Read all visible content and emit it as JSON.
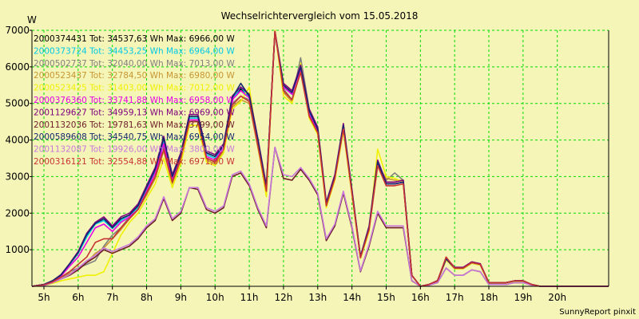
{
  "footer": "SunnyReport pinxit",
  "colors": {
    "background": "#f5f5b8",
    "plot_background": "#f5f5b8",
    "grid": "#00dd00",
    "axis": "#000000"
  },
  "chart_data": {
    "type": "line",
    "title": "Wechselrichtervergleich vom 15.05.2018",
    "ylabel": "W",
    "xlabel": "",
    "ylim": [
      0,
      7000
    ],
    "yticks": [
      1000,
      2000,
      3000,
      4000,
      5000,
      6000,
      7000
    ],
    "xlim": [
      4.65,
      21.5
    ],
    "xticks": [
      5,
      6,
      7,
      8,
      9,
      10,
      11,
      12,
      13,
      14,
      15,
      16,
      17,
      18,
      19,
      20
    ],
    "xtick_labels": [
      "5h",
      "6h",
      "7h",
      "8h",
      "9h",
      "10h",
      "11h",
      "12h",
      "13h",
      "14h",
      "15h",
      "16h",
      "17h",
      "18h",
      "19h",
      "20h"
    ],
    "grid": true,
    "legend_position": "top-left inside",
    "x": [
      4.65,
      5.0,
      5.25,
      5.5,
      5.75,
      6.0,
      6.25,
      6.5,
      6.75,
      7.0,
      7.25,
      7.5,
      7.75,
      8.0,
      8.25,
      8.5,
      8.75,
      9.0,
      9.25,
      9.5,
      9.75,
      10.0,
      10.25,
      10.5,
      10.75,
      11.0,
      11.25,
      11.5,
      11.75,
      12.0,
      12.25,
      12.5,
      12.75,
      13.0,
      13.25,
      13.5,
      13.75,
      14.0,
      14.25,
      14.5,
      14.75,
      15.0,
      15.25,
      15.5,
      15.75,
      16.0,
      16.25,
      16.5,
      16.75,
      17.0,
      17.25,
      17.5,
      17.75,
      18.0,
      18.25,
      18.5,
      18.75,
      19.0,
      19.25,
      19.5,
      19.75,
      20.0,
      20.25,
      20.5,
      21.5
    ],
    "series": [
      {
        "name": "2000374431 Tot: 34537,63 Wh Max: 6966,00 W",
        "color": "#000000",
        "values": [
          0,
          50,
          150,
          300,
          600,
          900,
          1400,
          1700,
          1850,
          1600,
          1850,
          1950,
          2200,
          2700,
          3200,
          4050,
          3000,
          3600,
          4650,
          4650,
          3650,
          3550,
          3850,
          5150,
          5400,
          5200,
          4000,
          2700,
          6950,
          5500,
          5300,
          6000,
          4800,
          4300,
          2250,
          3000,
          4400,
          2600,
          800,
          1600,
          3400,
          2800,
          2800,
          2850,
          300,
          0,
          50,
          150,
          750,
          500,
          500,
          650,
          600,
          100,
          100,
          100,
          150,
          150,
          50,
          0,
          0,
          0,
          0,
          0,
          0
        ]
      },
      {
        "name": "2000373724 Tot: 34453,25 Wh Max: 6964,00 W",
        "color": "#00c8e6",
        "values": [
          0,
          50,
          150,
          300,
          600,
          900,
          1350,
          1700,
          1800,
          1580,
          1800,
          1950,
          2150,
          2650,
          3150,
          4000,
          3000,
          3550,
          4600,
          4600,
          3600,
          3500,
          3800,
          5100,
          5450,
          5150,
          3950,
          2700,
          6950,
          5450,
          5250,
          5950,
          4750,
          4250,
          2250,
          3000,
          4350,
          2600,
          800,
          1600,
          3400,
          2800,
          2800,
          2850,
          300,
          0,
          50,
          150,
          750,
          500,
          500,
          650,
          600,
          100,
          100,
          100,
          150,
          150,
          50,
          0,
          0,
          0,
          0,
          0,
          0
        ]
      },
      {
        "name": "2000502737 Tot: 32040,00 Wh Max: 7013,00 W",
        "color": "#808080",
        "values": [
          0,
          30,
          100,
          200,
          400,
          500,
          600,
          700,
          1100,
          1400,
          1600,
          1900,
          2100,
          2500,
          3000,
          3800,
          2900,
          3500,
          4500,
          4550,
          3500,
          3400,
          3750,
          5000,
          5200,
          5100,
          3900,
          2600,
          7000,
          5400,
          5100,
          6250,
          4850,
          4300,
          2200,
          2950,
          4400,
          2550,
          780,
          1550,
          3300,
          2900,
          3100,
          2900,
          300,
          0,
          50,
          140,
          720,
          480,
          480,
          630,
          580,
          90,
          90,
          90,
          140,
          140,
          40,
          0,
          0,
          0,
          0,
          0,
          0
        ]
      },
      {
        "name": "2000523437 Tot: 32784,50 Wh Max: 6980,00 W",
        "color": "#c89632",
        "values": [
          0,
          30,
          100,
          200,
          350,
          450,
          650,
          900,
          1050,
          1300,
          1550,
          1850,
          2100,
          2500,
          2950,
          3700,
          2800,
          3450,
          4500,
          4500,
          3450,
          3350,
          3700,
          4900,
          5100,
          5000,
          3800,
          2550,
          6980,
          5300,
          5050,
          5900,
          4650,
          4200,
          2200,
          2950,
          4300,
          2550,
          780,
          1550,
          3300,
          2950,
          2900,
          2900,
          300,
          0,
          50,
          140,
          720,
          480,
          480,
          630,
          580,
          90,
          90,
          90,
          140,
          140,
          40,
          0,
          0,
          0,
          0,
          0,
          0
        ]
      },
      {
        "name": "2000523425 Tot: 31403,00 Wh Max: 7012,00 W",
        "color": "#f0f000",
        "values": [
          0,
          20,
          80,
          150,
          200,
          250,
          300,
          300,
          400,
          900,
          1400,
          1750,
          2000,
          2400,
          2800,
          3500,
          2700,
          3350,
          4400,
          4400,
          3400,
          3300,
          3650,
          4850,
          5050,
          5450,
          3850,
          2450,
          7000,
          5200,
          5000,
          6100,
          4600,
          4150,
          2150,
          2900,
          4250,
          2500,
          760,
          1500,
          3750,
          3000,
          2950,
          2850,
          300,
          0,
          50,
          140,
          720,
          480,
          480,
          630,
          580,
          90,
          90,
          90,
          140,
          140,
          40,
          0,
          0,
          0,
          0,
          0,
          0
        ]
      },
      {
        "name": "2000376360 Tot: 33741,88 Wh Max: 6958,00 W",
        "color": "#e600e6",
        "values": [
          0,
          40,
          130,
          280,
          550,
          800,
          1200,
          1600,
          1700,
          1500,
          1750,
          1900,
          2100,
          2600,
          3100,
          3900,
          2950,
          3550,
          4550,
          4550,
          3550,
          3450,
          3800,
          5100,
          5350,
          5150,
          3950,
          2650,
          6960,
          5450,
          5250,
          5950,
          4700,
          4250,
          2250,
          3000,
          4350,
          2600,
          790,
          1600,
          3400,
          2800,
          2800,
          2850,
          300,
          0,
          50,
          150,
          750,
          500,
          500,
          650,
          600,
          100,
          100,
          100,
          150,
          150,
          50,
          0,
          0,
          0,
          0,
          0,
          0
        ]
      },
      {
        "name": "2001129627 Tot: 34959,13 Wh Max: 6969,00 W",
        "color": "#800080",
        "values": [
          0,
          50,
          150,
          320,
          620,
          950,
          1450,
          1750,
          1900,
          1650,
          1900,
          2000,
          2250,
          2750,
          3250,
          4100,
          3050,
          3650,
          4700,
          4700,
          3700,
          3600,
          3900,
          5200,
          5450,
          5250,
          4050,
          2750,
          6970,
          5550,
          5350,
          6050,
          4850,
          4350,
          2300,
          3050,
          4450,
          2650,
          820,
          1650,
          3450,
          2850,
          2850,
          2900,
          300,
          0,
          50,
          160,
          780,
          520,
          520,
          670,
          620,
          100,
          100,
          100,
          150,
          150,
          50,
          0,
          0,
          0,
          0,
          0,
          0
        ]
      },
      {
        "name": "2001132036 Tot: 19781,63 Wh Max: 3799,00 W",
        "color": "#6e1e28",
        "values": [
          0,
          20,
          100,
          200,
          300,
          450,
          650,
          800,
          1000,
          900,
          1000,
          1100,
          1300,
          1600,
          1800,
          2400,
          1800,
          2000,
          2700,
          2650,
          2100,
          2000,
          2150,
          3000,
          3100,
          2750,
          2100,
          1600,
          3800,
          2950,
          2900,
          3200,
          2900,
          2500,
          1250,
          1650,
          2550,
          1600,
          400,
          1100,
          2000,
          1600,
          1600,
          1600,
          150,
          0,
          30,
          100,
          500,
          300,
          300,
          450,
          400,
          50,
          50,
          50,
          100,
          100,
          30,
          0,
          0,
          0,
          0,
          0,
          0
        ]
      },
      {
        "name": "2000589608 Tot: 34540,75 Wh Max: 6954,00 W",
        "color": "#14286e",
        "values": [
          0,
          50,
          150,
          310,
          610,
          920,
          1420,
          1720,
          1850,
          1600,
          1850,
          1950,
          2200,
          2700,
          3200,
          4050,
          3000,
          3600,
          4650,
          4650,
          3650,
          3550,
          3850,
          5150,
          5550,
          5200,
          4000,
          2700,
          6950,
          5500,
          5300,
          6000,
          4800,
          4300,
          2250,
          3000,
          4400,
          2600,
          800,
          1600,
          3400,
          2800,
          2800,
          2850,
          300,
          0,
          50,
          150,
          750,
          500,
          500,
          650,
          600,
          100,
          100,
          100,
          150,
          150,
          50,
          0,
          0,
          0,
          0,
          0,
          0
        ]
      },
      {
        "name": "2001132087 Tot: 19926,00 Wh Max: 3800,00 W",
        "color": "#c878dc",
        "values": [
          0,
          20,
          100,
          200,
          320,
          500,
          700,
          850,
          1050,
          950,
          1050,
          1150,
          1350,
          1650,
          1850,
          2450,
          1850,
          2050,
          2700,
          2700,
          2150,
          2050,
          2200,
          3050,
          3150,
          2800,
          2150,
          1650,
          3800,
          3050,
          3000,
          3250,
          2950,
          2550,
          1300,
          1700,
          2600,
          1650,
          420,
          1150,
          2050,
          1650,
          1650,
          1650,
          160,
          0,
          30,
          100,
          500,
          300,
          300,
          450,
          400,
          50,
          50,
          50,
          100,
          100,
          30,
          0,
          0,
          0,
          0,
          0,
          0
        ]
      },
      {
        "name": "2000316121 Tot: 32554,88 Wh Max: 6971,00 W",
        "color": "#c83232",
        "values": [
          0,
          40,
          120,
          250,
          400,
          600,
          800,
          1200,
          1300,
          1300,
          1600,
          1850,
          2100,
          2550,
          3000,
          3750,
          2850,
          3500,
          4500,
          4500,
          3500,
          3400,
          3750,
          4950,
          5200,
          5050,
          3850,
          2600,
          6970,
          5350,
          5100,
          5850,
          4650,
          4200,
          2200,
          2950,
          4300,
          2550,
          780,
          1550,
          3300,
          2750,
          2750,
          2800,
          300,
          0,
          50,
          150,
          800,
          500,
          500,
          650,
          600,
          100,
          100,
          100,
          150,
          150,
          50,
          0,
          0,
          0,
          0,
          0,
          0
        ]
      }
    ]
  }
}
